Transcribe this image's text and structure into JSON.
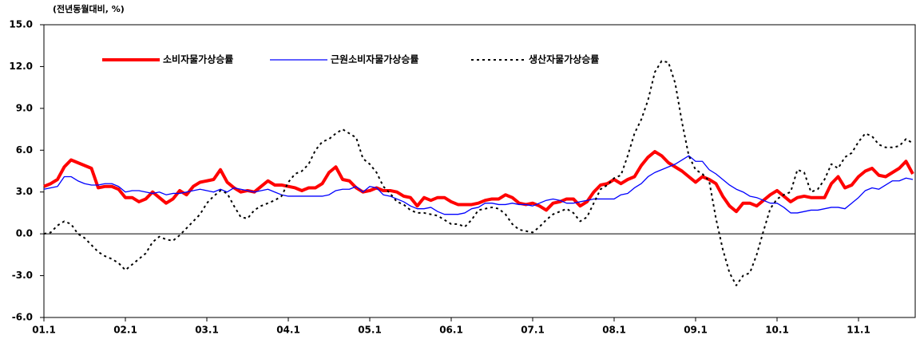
{
  "chart_data": {
    "type": "line",
    "y_label": "(전년동월대비, %)",
    "categories": [
      "01.1",
      null,
      null,
      null,
      null,
      null,
      null,
      null,
      null,
      null,
      null,
      null,
      "02.1",
      null,
      null,
      null,
      null,
      null,
      null,
      null,
      null,
      null,
      null,
      null,
      "03.1",
      null,
      null,
      null,
      null,
      null,
      null,
      null,
      null,
      null,
      null,
      null,
      "04.1",
      null,
      null,
      null,
      null,
      null,
      null,
      null,
      null,
      null,
      null,
      null,
      "05.1",
      null,
      null,
      null,
      null,
      null,
      null,
      null,
      null,
      null,
      null,
      null,
      "06.1",
      null,
      null,
      null,
      null,
      null,
      null,
      null,
      null,
      null,
      null,
      null,
      "07.1",
      null,
      null,
      null,
      null,
      null,
      null,
      null,
      null,
      null,
      null,
      null,
      "08.1",
      null,
      null,
      null,
      null,
      null,
      null,
      null,
      null,
      null,
      null,
      null,
      "09.1",
      null,
      null,
      null,
      null,
      null,
      null,
      null,
      null,
      null,
      null,
      null,
      "10.1",
      null,
      null,
      null,
      null,
      null,
      null,
      null,
      null,
      null,
      null,
      null,
      "11.1",
      null,
      null,
      null,
      null,
      null,
      null,
      null,
      null
    ],
    "series": [
      {
        "name": "소비자물가상승률",
        "color": "#ff0000",
        "style": "thick",
        "values": [
          3.4,
          3.6,
          3.9,
          4.8,
          5.3,
          5.1,
          4.9,
          4.7,
          3.3,
          3.4,
          3.4,
          3.2,
          2.6,
          2.6,
          2.3,
          2.5,
          3.0,
          2.6,
          2.2,
          2.5,
          3.1,
          2.8,
          3.4,
          3.7,
          3.8,
          3.9,
          4.6,
          3.7,
          3.3,
          3.0,
          3.1,
          3.0,
          3.4,
          3.8,
          3.5,
          3.5,
          3.4,
          3.3,
          3.1,
          3.3,
          3.3,
          3.6,
          4.4,
          4.8,
          3.9,
          3.8,
          3.3,
          3.0,
          3.1,
          3.3,
          3.1,
          3.1,
          3.0,
          2.7,
          2.6,
          2.0,
          2.6,
          2.4,
          2.6,
          2.6,
          2.3,
          2.1,
          2.1,
          2.1,
          2.2,
          2.4,
          2.5,
          2.5,
          2.8,
          2.6,
          2.2,
          2.1,
          2.2,
          2.0,
          1.7,
          2.2,
          2.3,
          2.5,
          2.5,
          2.0,
          2.3,
          3.0,
          3.5,
          3.6,
          3.9,
          3.6,
          3.9,
          4.1,
          4.9,
          5.5,
          5.9,
          5.6,
          5.1,
          4.8,
          4.5,
          4.1,
          3.7,
          4.1,
          3.9,
          3.6,
          2.7,
          2.0,
          1.6,
          2.2,
          2.2,
          2.0,
          2.4,
          2.8,
          3.1,
          2.7,
          2.3,
          2.6,
          2.7,
          2.6,
          2.6,
          2.6,
          3.6,
          4.1,
          3.3,
          3.5,
          4.1,
          4.5,
          4.7,
          4.2,
          4.1,
          4.4,
          4.7,
          5.2,
          4.3
        ]
      },
      {
        "name": "근원소비자물가상승률",
        "color": "#0000ff",
        "style": "thin",
        "values": [
          3.2,
          3.3,
          3.4,
          4.1,
          4.1,
          3.8,
          3.6,
          3.5,
          3.5,
          3.6,
          3.6,
          3.4,
          3.0,
          3.1,
          3.1,
          3.0,
          2.9,
          3.0,
          2.8,
          2.9,
          2.9,
          3.0,
          3.1,
          3.2,
          3.1,
          3.0,
          3.2,
          3.0,
          3.3,
          3.2,
          3.1,
          3.0,
          3.1,
          3.2,
          3.0,
          2.8,
          2.7,
          2.7,
          2.7,
          2.7,
          2.7,
          2.7,
          2.8,
          3.1,
          3.2,
          3.2,
          3.4,
          3.0,
          3.4,
          3.3,
          2.8,
          2.7,
          2.5,
          2.3,
          2.0,
          1.8,
          1.8,
          1.9,
          1.6,
          1.4,
          1.4,
          1.4,
          1.5,
          1.8,
          1.9,
          2.2,
          2.2,
          2.1,
          2.1,
          2.2,
          2.1,
          2.1,
          2.0,
          2.2,
          2.4,
          2.5,
          2.4,
          2.2,
          2.2,
          2.3,
          2.4,
          2.5,
          2.5,
          2.5,
          2.5,
          2.8,
          2.9,
          3.3,
          3.6,
          4.1,
          4.4,
          4.6,
          4.8,
          5.0,
          5.3,
          5.6,
          5.2,
          5.2,
          4.6,
          4.3,
          3.9,
          3.5,
          3.2,
          3.0,
          2.7,
          2.6,
          2.4,
          2.2,
          2.2,
          1.9,
          1.5,
          1.5,
          1.6,
          1.7,
          1.7,
          1.8,
          1.9,
          1.9,
          1.8,
          2.2,
          2.6,
          3.1,
          3.3,
          3.2,
          3.5,
          3.8,
          3.8,
          4.0,
          3.9
        ]
      },
      {
        "name": "생산자물가상승률",
        "color": "#000000",
        "style": "dotted",
        "values": [
          0.0,
          0.1,
          0.6,
          0.9,
          0.7,
          0.0,
          -0.3,
          -0.8,
          -1.3,
          -1.6,
          -1.8,
          -2.1,
          -2.6,
          -2.2,
          -1.8,
          -1.4,
          -0.6,
          -0.2,
          -0.4,
          -0.5,
          -0.1,
          0.4,
          0.9,
          1.4,
          2.2,
          2.7,
          3.1,
          2.9,
          2.0,
          1.2,
          1.1,
          1.7,
          2.0,
          2.2,
          2.4,
          2.7,
          3.7,
          4.3,
          4.5,
          5.0,
          6.0,
          6.6,
          6.8,
          7.2,
          7.5,
          7.2,
          6.9,
          5.4,
          5.0,
          4.4,
          3.4,
          2.9,
          2.3,
          2.1,
          1.7,
          1.5,
          1.5,
          1.4,
          1.3,
          1.0,
          0.7,
          0.7,
          0.5,
          1.0,
          1.7,
          1.8,
          1.9,
          1.8,
          1.4,
          0.7,
          0.3,
          0.2,
          0.1,
          0.5,
          1.0,
          1.4,
          1.6,
          1.8,
          1.5,
          0.9,
          1.2,
          2.2,
          3.2,
          3.5,
          4.0,
          4.2,
          5.6,
          7.2,
          8.2,
          9.6,
          11.6,
          12.4,
          12.3,
          10.8,
          8.0,
          5.6,
          4.6,
          4.3,
          3.8,
          1.1,
          -1.1,
          -2.8,
          -3.7,
          -3.0,
          -2.8,
          -1.5,
          0.2,
          1.8,
          2.5,
          2.8,
          3.0,
          4.6,
          4.4,
          3.0,
          3.2,
          3.9,
          5.0,
          4.7,
          5.5,
          5.8,
          6.6,
          7.2,
          7.0,
          6.4,
          6.2,
          6.2,
          6.3,
          6.8,
          6.5
        ]
      }
    ],
    "ylim": [
      -6,
      15
    ],
    "yticks": [
      {
        "value": -6,
        "label": "-6.0"
      },
      {
        "value": -3,
        "label": "-3.0"
      },
      {
        "value": 0,
        "label": "0.0"
      },
      {
        "value": 3,
        "label": "3.0"
      },
      {
        "value": 6,
        "label": "6.0"
      },
      {
        "value": 9,
        "label": "9.0"
      },
      {
        "value": 12,
        "label": "12.0"
      },
      {
        "value": 15,
        "label": "15.0"
      }
    ],
    "legend": "top-left",
    "grid": false
  }
}
